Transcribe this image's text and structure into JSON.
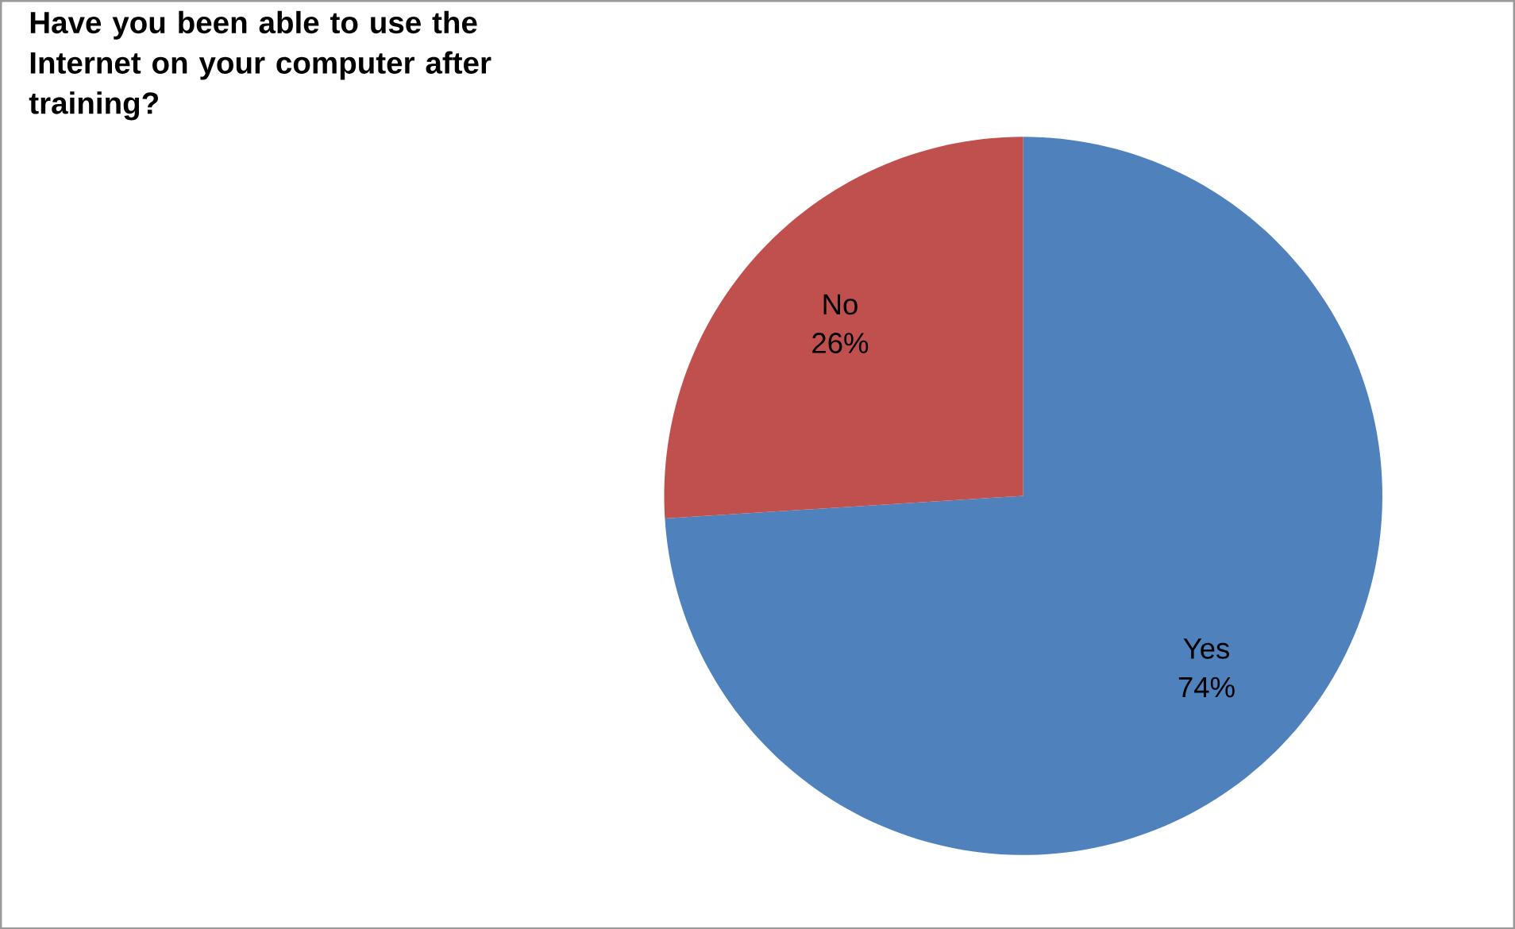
{
  "chart_data": {
    "type": "pie",
    "title": "Have you been able to use the Internet on your computer after training?",
    "categories": [
      "Yes",
      "No"
    ],
    "values": [
      74,
      26
    ],
    "colors": [
      "#4f81bd",
      "#c0504d"
    ],
    "value_labels": [
      "74%",
      "26%"
    ]
  }
}
